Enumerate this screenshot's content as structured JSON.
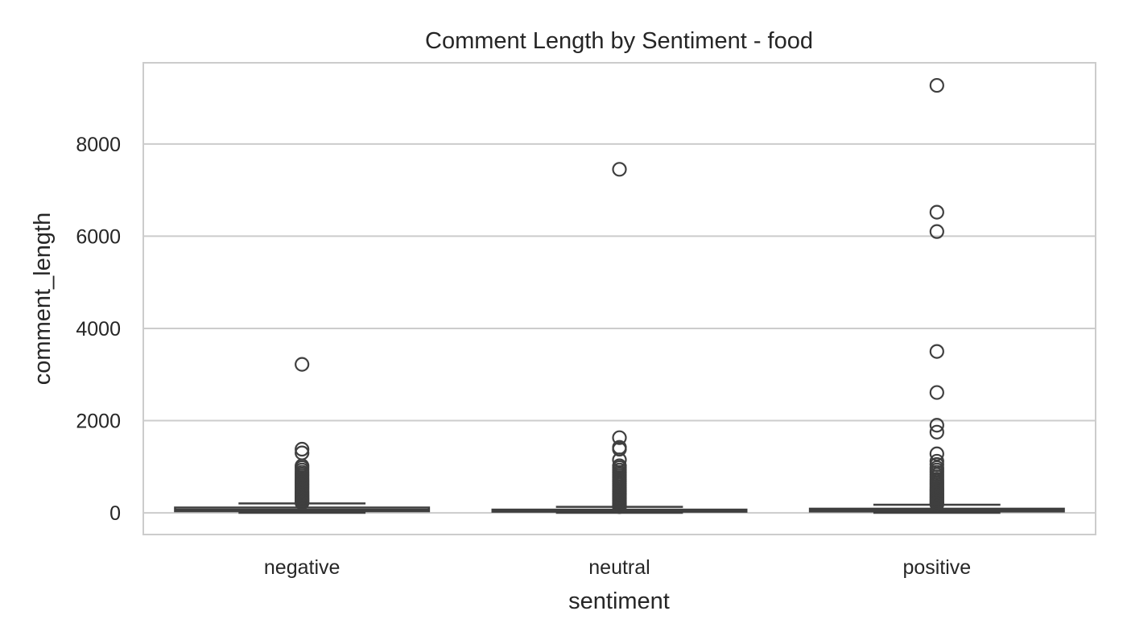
{
  "chart_data": {
    "type": "boxplot",
    "title": "Comment Length by Sentiment - food",
    "xlabel": "sentiment",
    "ylabel": "comment_length",
    "categories": [
      "negative",
      "neutral",
      "positive"
    ],
    "ylim": [
      -470,
      9760
    ],
    "yticks": [
      0,
      2000,
      4000,
      6000,
      8000
    ],
    "grid": true,
    "legend": "none",
    "colors": {
      "box_fill": "#ffffff",
      "line": "#3f3f3f",
      "grid": "#cccccc",
      "frame": "#cccccc",
      "text": "#262626"
    },
    "boxes": [
      {
        "category": "negative",
        "whisker_low": 1,
        "q1": 35,
        "median": 70,
        "q3": 115,
        "whisker_high": 205,
        "outliers": [
          3220,
          1380,
          1300,
          1020,
          980,
          930,
          880,
          840,
          800,
          760,
          720,
          690,
          660,
          630,
          600,
          570,
          540,
          510,
          480,
          455,
          430,
          405,
          380,
          355,
          330,
          310,
          290,
          270,
          250,
          230,
          215
        ]
      },
      {
        "category": "neutral",
        "whisker_low": 1,
        "q1": 25,
        "median": 45,
        "q3": 70,
        "whisker_high": 130,
        "outliers": [
          7450,
          1630,
          1420,
          1380,
          1150,
          1020,
          980,
          930,
          880,
          840,
          800,
          760,
          720,
          680,
          640,
          600,
          560,
          520,
          490,
          460,
          430,
          400,
          370,
          340,
          310,
          280,
          250,
          220,
          195,
          170,
          150,
          135
        ]
      },
      {
        "category": "positive",
        "whisker_low": 1,
        "q1": 30,
        "median": 55,
        "q3": 90,
        "whisker_high": 175,
        "outliers": [
          9270,
          6520,
          6100,
          3500,
          2610,
          1900,
          1750,
          1280,
          1120,
          1050,
          980,
          930,
          880,
          830,
          780,
          730,
          690,
          650,
          610,
          570,
          530,
          500,
          470,
          440,
          410,
          380,
          350,
          320,
          290,
          260,
          230,
          205,
          185
        ]
      }
    ]
  }
}
